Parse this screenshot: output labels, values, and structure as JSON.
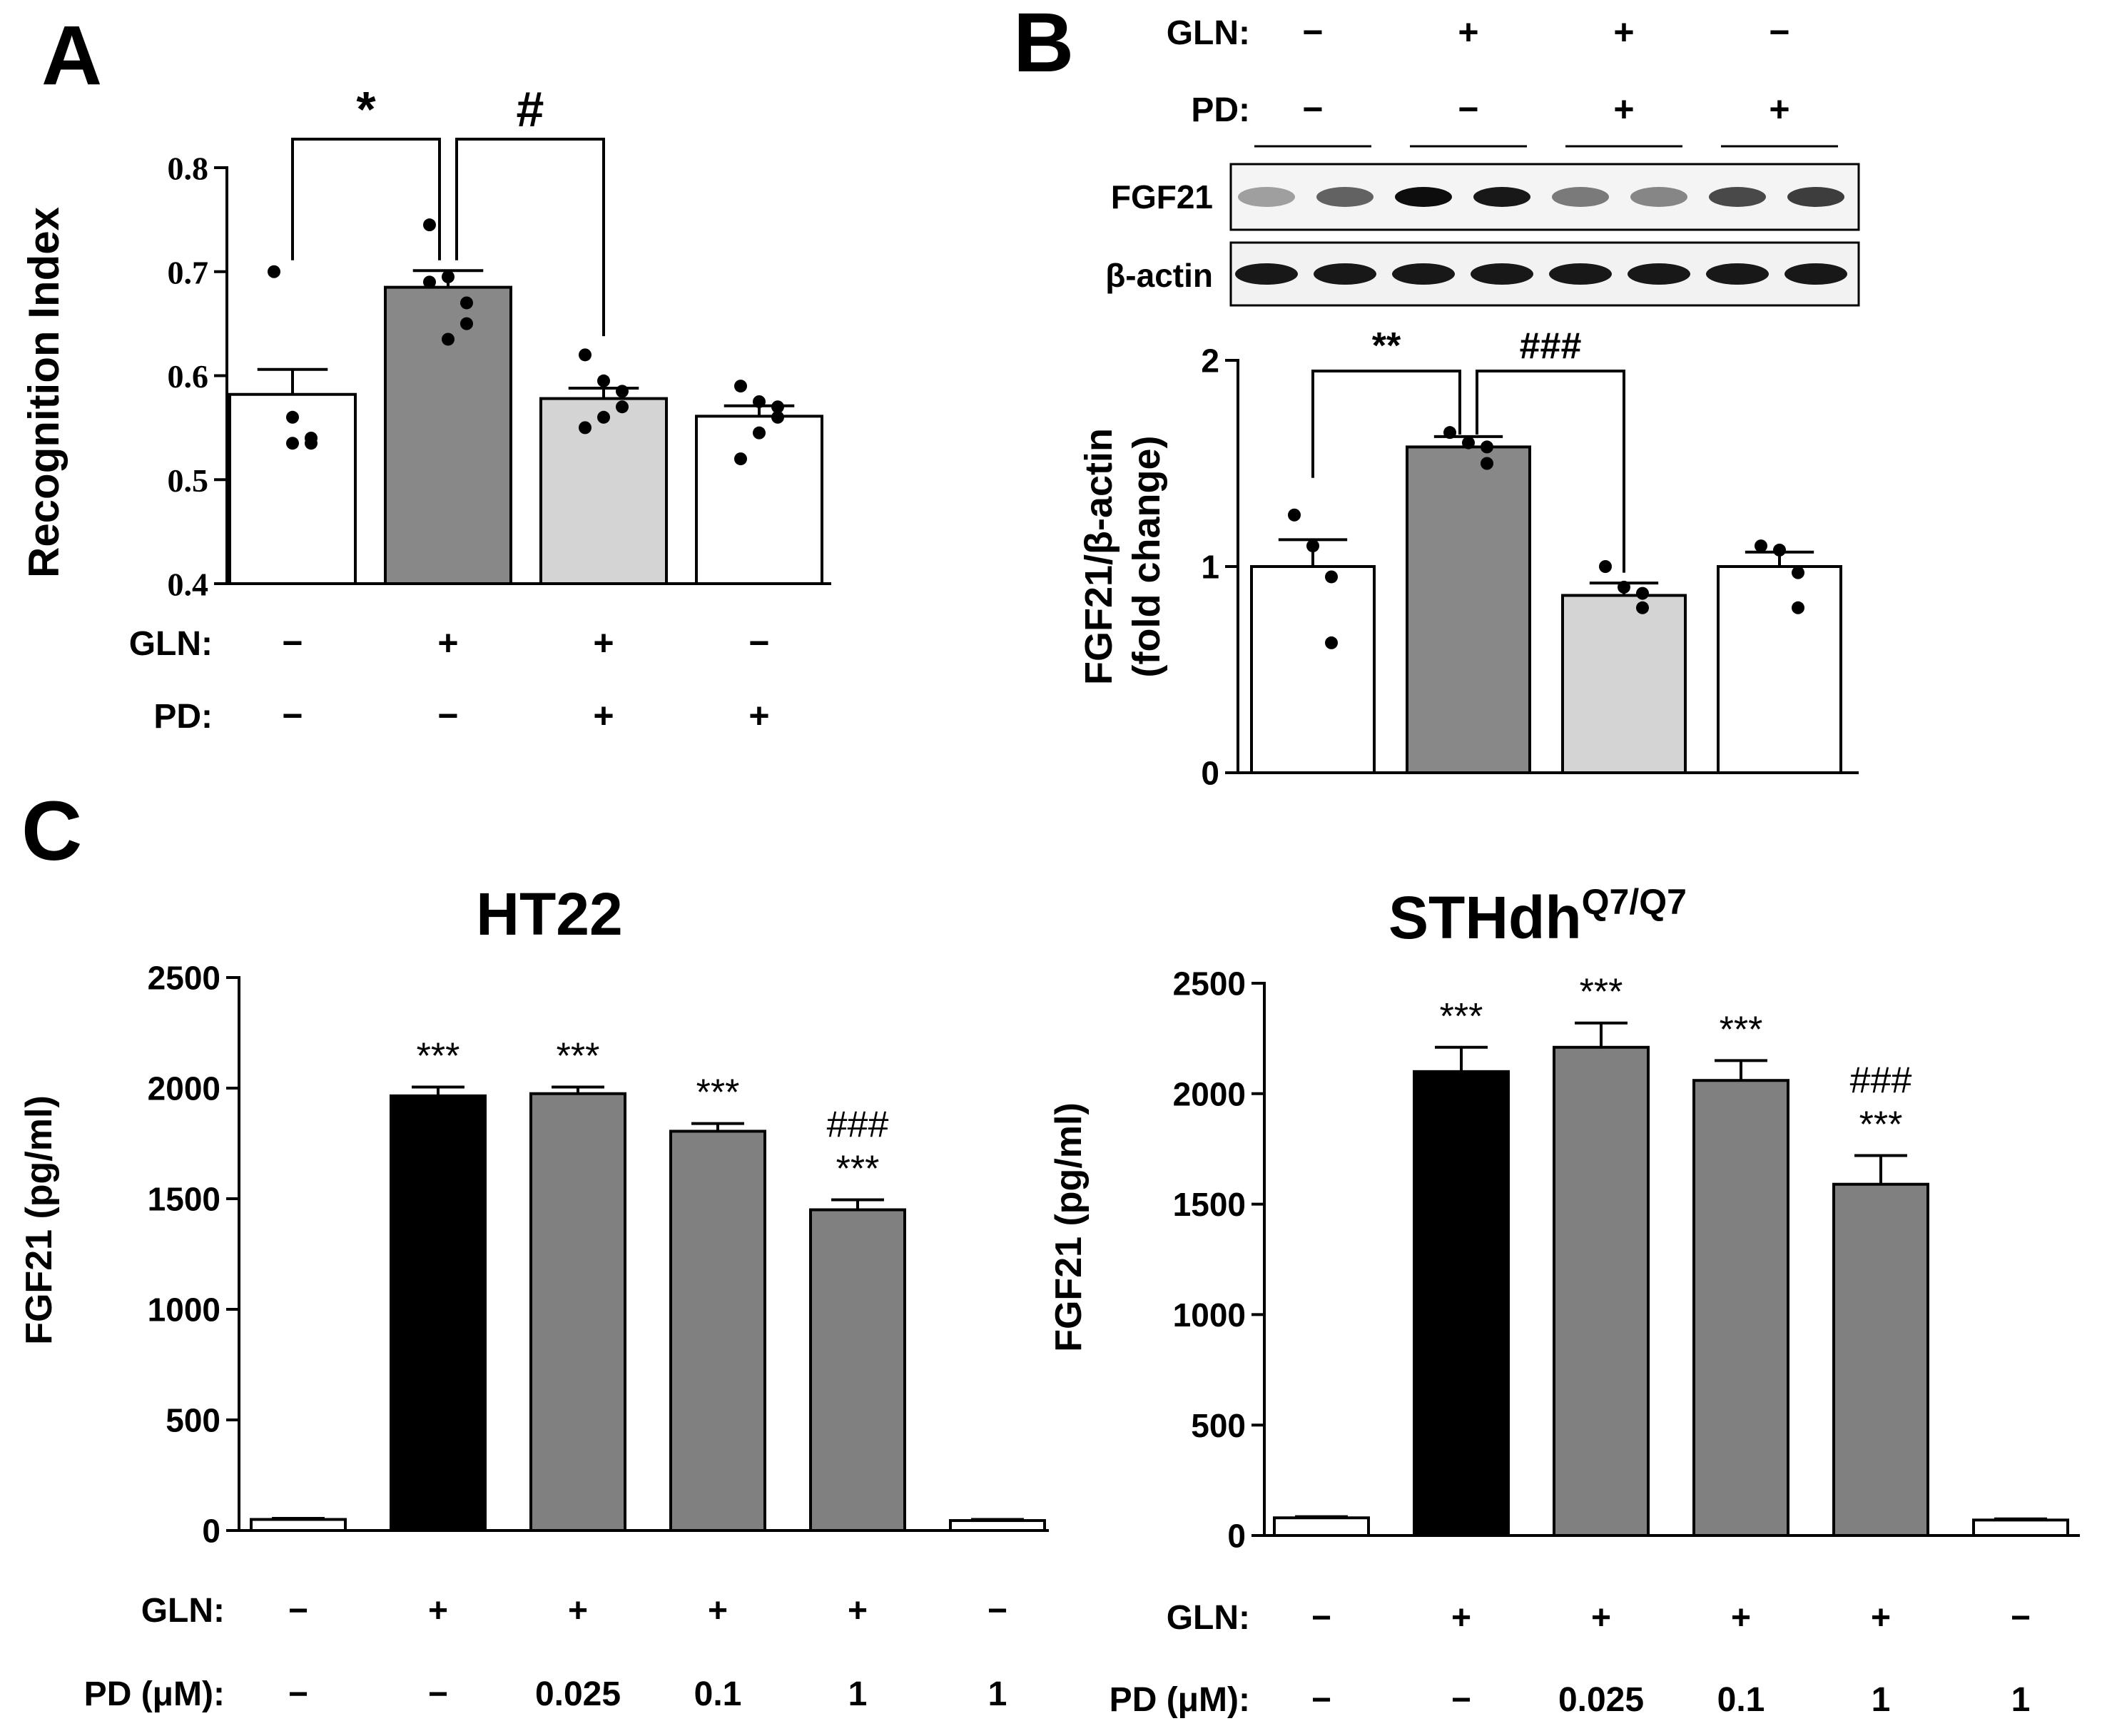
{
  "panel_labels": {
    "A": "A",
    "B": "B",
    "C": "C"
  },
  "treatment_labels": {
    "gln": "GLN:",
    "pd": "PD:",
    "pd_um": "PD (μM):"
  },
  "chart_data": [
    {
      "id": "A",
      "type": "bar",
      "ylabel": "Recognition Index",
      "ylim": [
        0.4,
        0.8
      ],
      "yticks": [
        "0.4",
        "0.5",
        "0.6",
        "0.7",
        "0.8"
      ],
      "categories": [
        "1",
        "2",
        "3",
        "4"
      ],
      "gln": [
        "−",
        "+",
        "+",
        "−"
      ],
      "pd": [
        "−",
        "−",
        "+",
        "+"
      ],
      "values": [
        0.582,
        0.685,
        0.578,
        0.561
      ],
      "errors": [
        0.024,
        0.016,
        0.01,
        0.01
      ],
      "colors": [
        "#ffffff",
        "#888888",
        "#d4d4d4",
        "#ffffff"
      ],
      "points": [
        [
          0.7,
          0.56,
          0.54,
          0.535,
          0.535
        ],
        [
          0.745,
          0.695,
          0.67,
          0.65,
          0.635,
          0.69
        ],
        [
          0.62,
          0.595,
          0.585,
          0.57,
          0.56,
          0.55
        ],
        [
          0.59,
          0.575,
          0.57,
          0.56,
          0.545,
          0.52
        ]
      ],
      "significance": [
        {
          "from": 0,
          "to": 1,
          "label": "*"
        },
        {
          "from": 1,
          "to": 2,
          "label": "#"
        }
      ]
    },
    {
      "id": "B",
      "type": "bar",
      "ylabel_line1": "FGF21/β-actin",
      "ylabel_line2": "(fold change)",
      "ylim": [
        0,
        2
      ],
      "yticks": [
        "0",
        "1",
        "2"
      ],
      "categories": [
        "1",
        "2",
        "3",
        "4"
      ],
      "gln": [
        "−",
        "+",
        "+",
        "−"
      ],
      "pd": [
        "−",
        "−",
        "+",
        "+"
      ],
      "values": [
        1.0,
        1.58,
        0.86,
        1.0
      ],
      "errors": [
        0.13,
        0.05,
        0.06,
        0.07
      ],
      "colors": [
        "#ffffff",
        "#888888",
        "#d4d4d4",
        "#ffffff"
      ],
      "points": [
        [
          1.25,
          1.1,
          0.95,
          0.63
        ],
        [
          1.65,
          1.6,
          1.58,
          1.5
        ],
        [
          1.0,
          0.9,
          0.87,
          0.8
        ],
        [
          1.1,
          1.08,
          0.97,
          0.8
        ]
      ],
      "significance": [
        {
          "from": 0,
          "to": 1,
          "label": "**"
        },
        {
          "from": 1,
          "to": 2,
          "label": "###"
        }
      ],
      "blot_rows": [
        "FGF21",
        "β-actin"
      ]
    },
    {
      "id": "C1",
      "type": "bar",
      "title": "HT22",
      "ylabel": "FGF21 (pg/ml)",
      "ylim": [
        0,
        2500
      ],
      "yticks": [
        "0",
        "500",
        "1000",
        "1500",
        "2000",
        "2500"
      ],
      "categories": [
        "1",
        "2",
        "3",
        "4",
        "5",
        "6"
      ],
      "gln": [
        "−",
        "+",
        "+",
        "+",
        "+",
        "−"
      ],
      "pd": [
        "−",
        "−",
        "0.025",
        "0.1",
        "1",
        "1"
      ],
      "values": [
        50,
        1965,
        1975,
        1805,
        1450,
        45
      ],
      "errors": [
        5,
        40,
        30,
        35,
        45,
        5
      ],
      "colors": [
        "#ffffff",
        "#000000",
        "#808080",
        "#808080",
        "#808080",
        "#ffffff"
      ],
      "annotations": [
        [],
        [
          "***"
        ],
        [
          "***"
        ],
        [
          "***"
        ],
        [
          "###",
          "***"
        ],
        []
      ]
    },
    {
      "id": "C2",
      "type": "bar",
      "title": "STHdh",
      "title_superscript": "Q7/Q7",
      "ylabel": "FGF21 (pg/ml)",
      "ylim": [
        0,
        2500
      ],
      "yticks": [
        "0",
        "500",
        "1000",
        "1500",
        "2000",
        "2500"
      ],
      "categories": [
        "1",
        "2",
        "3",
        "4",
        "5",
        "6"
      ],
      "gln": [
        "−",
        "+",
        "+",
        "+",
        "+",
        "−"
      ],
      "pd": [
        "−",
        "−",
        "0.025",
        "0.1",
        "1",
        "1"
      ],
      "values": [
        80,
        2100,
        2210,
        2060,
        1590,
        70
      ],
      "errors": [
        5,
        110,
        110,
        90,
        130,
        5
      ],
      "colors": [
        "#ffffff",
        "#000000",
        "#808080",
        "#808080",
        "#808080",
        "#ffffff"
      ],
      "annotations": [
        [],
        [
          "***"
        ],
        [
          "***"
        ],
        [
          "***"
        ],
        [
          "###",
          "***"
        ],
        []
      ]
    }
  ]
}
